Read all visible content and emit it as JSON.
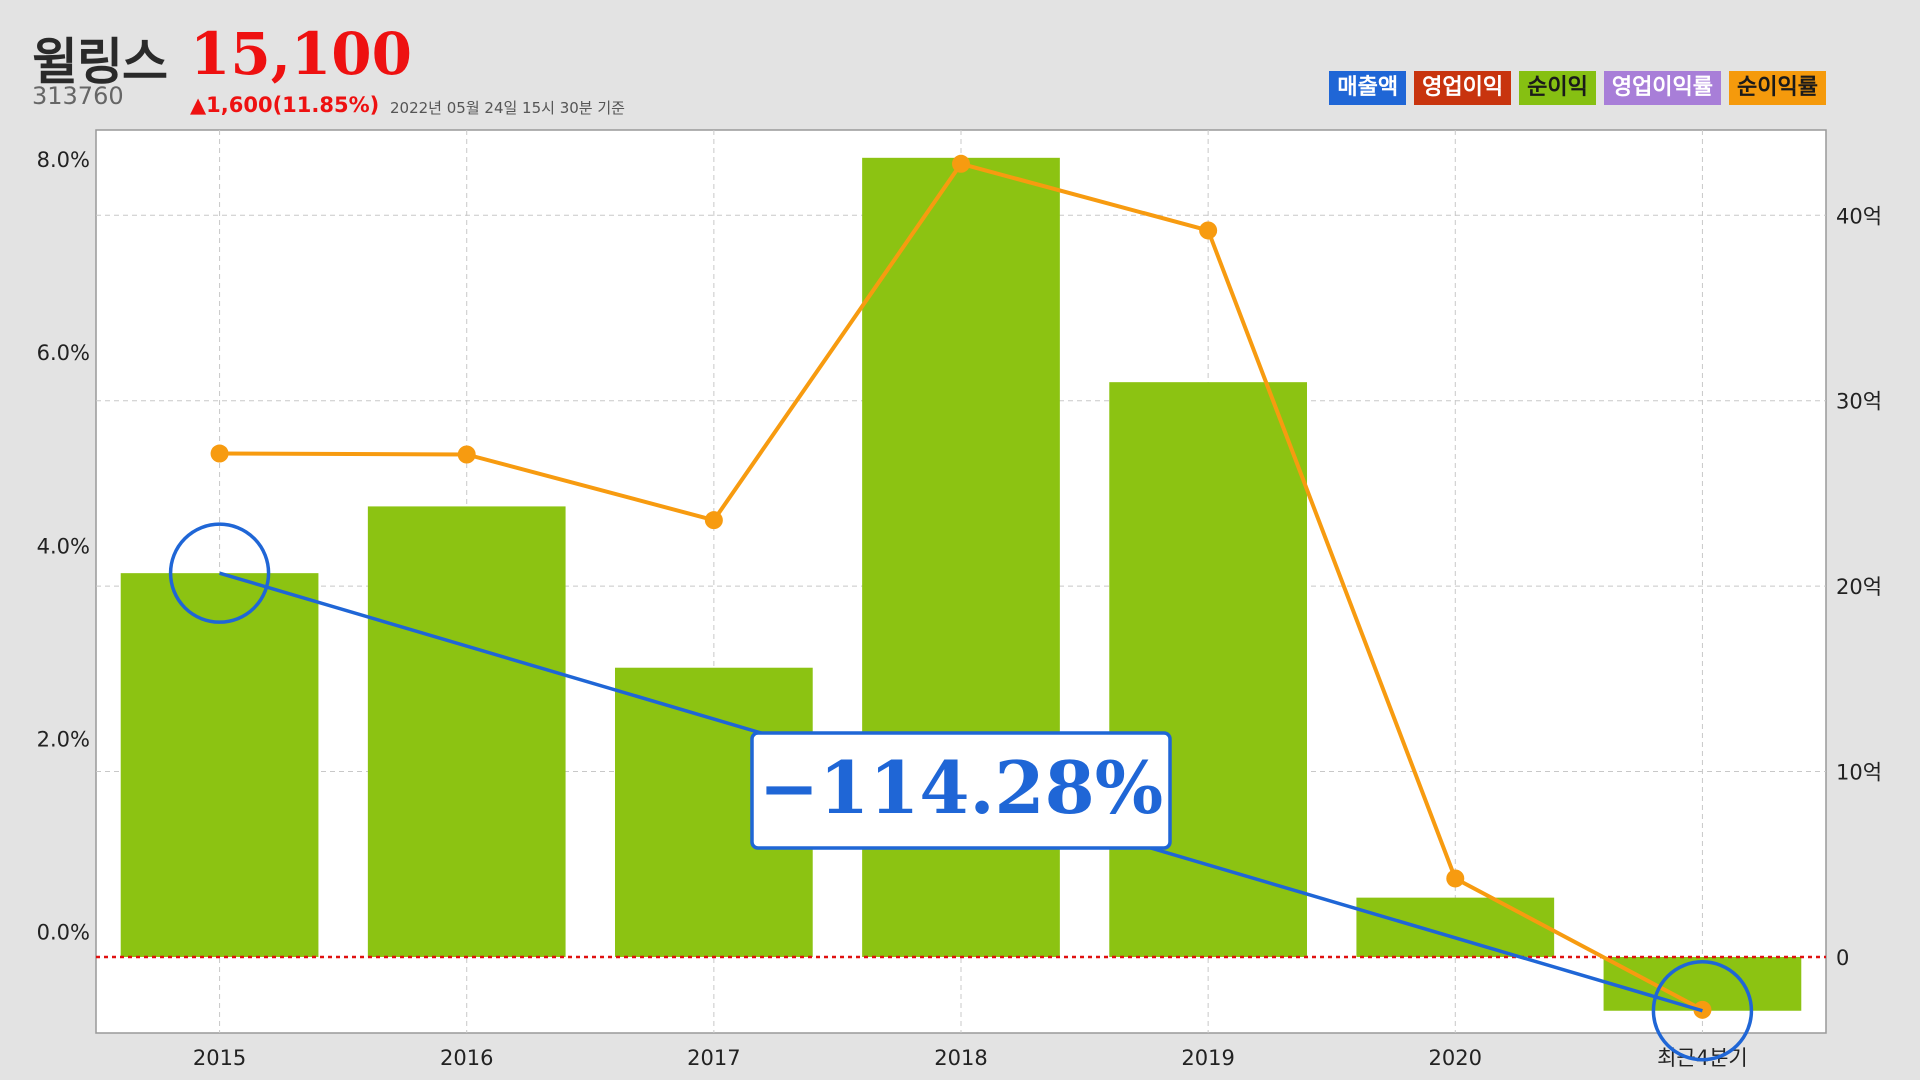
{
  "header": {
    "company": "윌링스",
    "price": "15,100",
    "code": "313760",
    "change": "▲1,600(11.85%)",
    "asof": "2022년 05월 24일 15시 30분 기준"
  },
  "legend": [
    {
      "label": "매출액",
      "color": "#1f66d6",
      "text_color": "#ffffff"
    },
    {
      "label": "영업이익",
      "color": "#c8340e",
      "text_color": "#ffffff"
    },
    {
      "label": "순이익",
      "color": "#86c012",
      "text_color": "#1a1a1a"
    },
    {
      "label": "영업이익률",
      "color": "#a87ed8",
      "text_color": "#ffffff"
    },
    {
      "label": "순이익률",
      "color": "#f59a0c",
      "text_color": "#1a1a1a"
    }
  ],
  "chart_data": {
    "type": "bar",
    "categories": [
      "2015",
      "2016",
      "2017",
      "2018",
      "2019",
      "2020",
      "최근4분기"
    ],
    "left_axis": {
      "ticks": [
        "0.0%",
        "2.0%",
        "4.0%",
        "6.0%",
        "8.0%"
      ],
      "ylim": [
        -1.05,
        8.3
      ]
    },
    "right_axis": {
      "ticks": [
        "0",
        "10억",
        "20억",
        "30억",
        "40억"
      ],
      "ylim": [
        -4.1,
        44.6
      ]
    },
    "series": [
      {
        "name": "순이익",
        "axis": "right",
        "type": "bar",
        "color": "#8cc312",
        "values": [
          20.7,
          24.3,
          15.6,
          43.1,
          31.0,
          3.2,
          -2.9
        ]
      },
      {
        "name": "순이익률",
        "axis": "left",
        "type": "line",
        "color": "#f79b10",
        "values": [
          4.95,
          4.94,
          4.26,
          7.95,
          7.26,
          0.55,
          -0.81
        ]
      }
    ],
    "trend": {
      "color": "#1f66d6",
      "values": [
        20.7,
        -2.9
      ],
      "label": "−114.28%"
    },
    "zero_line_color": "#e01010",
    "grid": true
  }
}
